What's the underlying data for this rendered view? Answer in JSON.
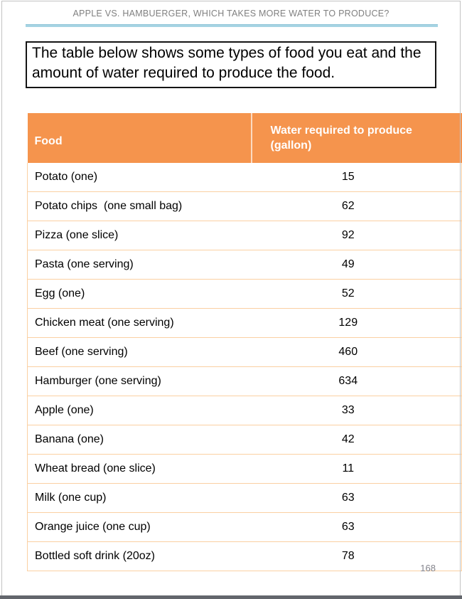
{
  "page": {
    "header_title": "APPLE VS. HAMBUERGER, WHICH TAKES MORE WATER TO PRODUCE?",
    "intro_text": "The table below shows some types of food you eat and the amount of water required to produce the food.",
    "page_number": "168"
  },
  "colors": {
    "header_orange": "#f5944d",
    "row_divider_peach": "#fbd0a2",
    "underline_blue": "#a6d4e3",
    "title_gray": "#808080",
    "header_text": "#ffffff"
  },
  "table": {
    "columns": [
      "Food",
      "Water required to produce (gallon)"
    ],
    "rows": [
      {
        "food": "Potato (one)",
        "gallons": "15"
      },
      {
        "food": "Potato chips  (one small bag)",
        "gallons": "62"
      },
      {
        "food": "Pizza (one slice)",
        "gallons": "92"
      },
      {
        "food": "Pasta (one serving)",
        "gallons": "49"
      },
      {
        "food": "Egg (one)",
        "gallons": "52"
      },
      {
        "food": "Chicken meat (one serving)",
        "gallons": "129"
      },
      {
        "food": "Beef (one serving)",
        "gallons": "460"
      },
      {
        "food": "Hamburger (one serving)",
        "gallons": "634"
      },
      {
        "food": "Apple (one)",
        "gallons": "33"
      },
      {
        "food": "Banana (one)",
        "gallons": "42"
      },
      {
        "food": "Wheat bread (one slice)",
        "gallons": "11"
      },
      {
        "food": "Milk (one cup)",
        "gallons": "63"
      },
      {
        "food": "Orange juice (one cup)",
        "gallons": "63"
      },
      {
        "food": "Bottled soft drink (20oz)",
        "gallons": "78"
      }
    ]
  }
}
